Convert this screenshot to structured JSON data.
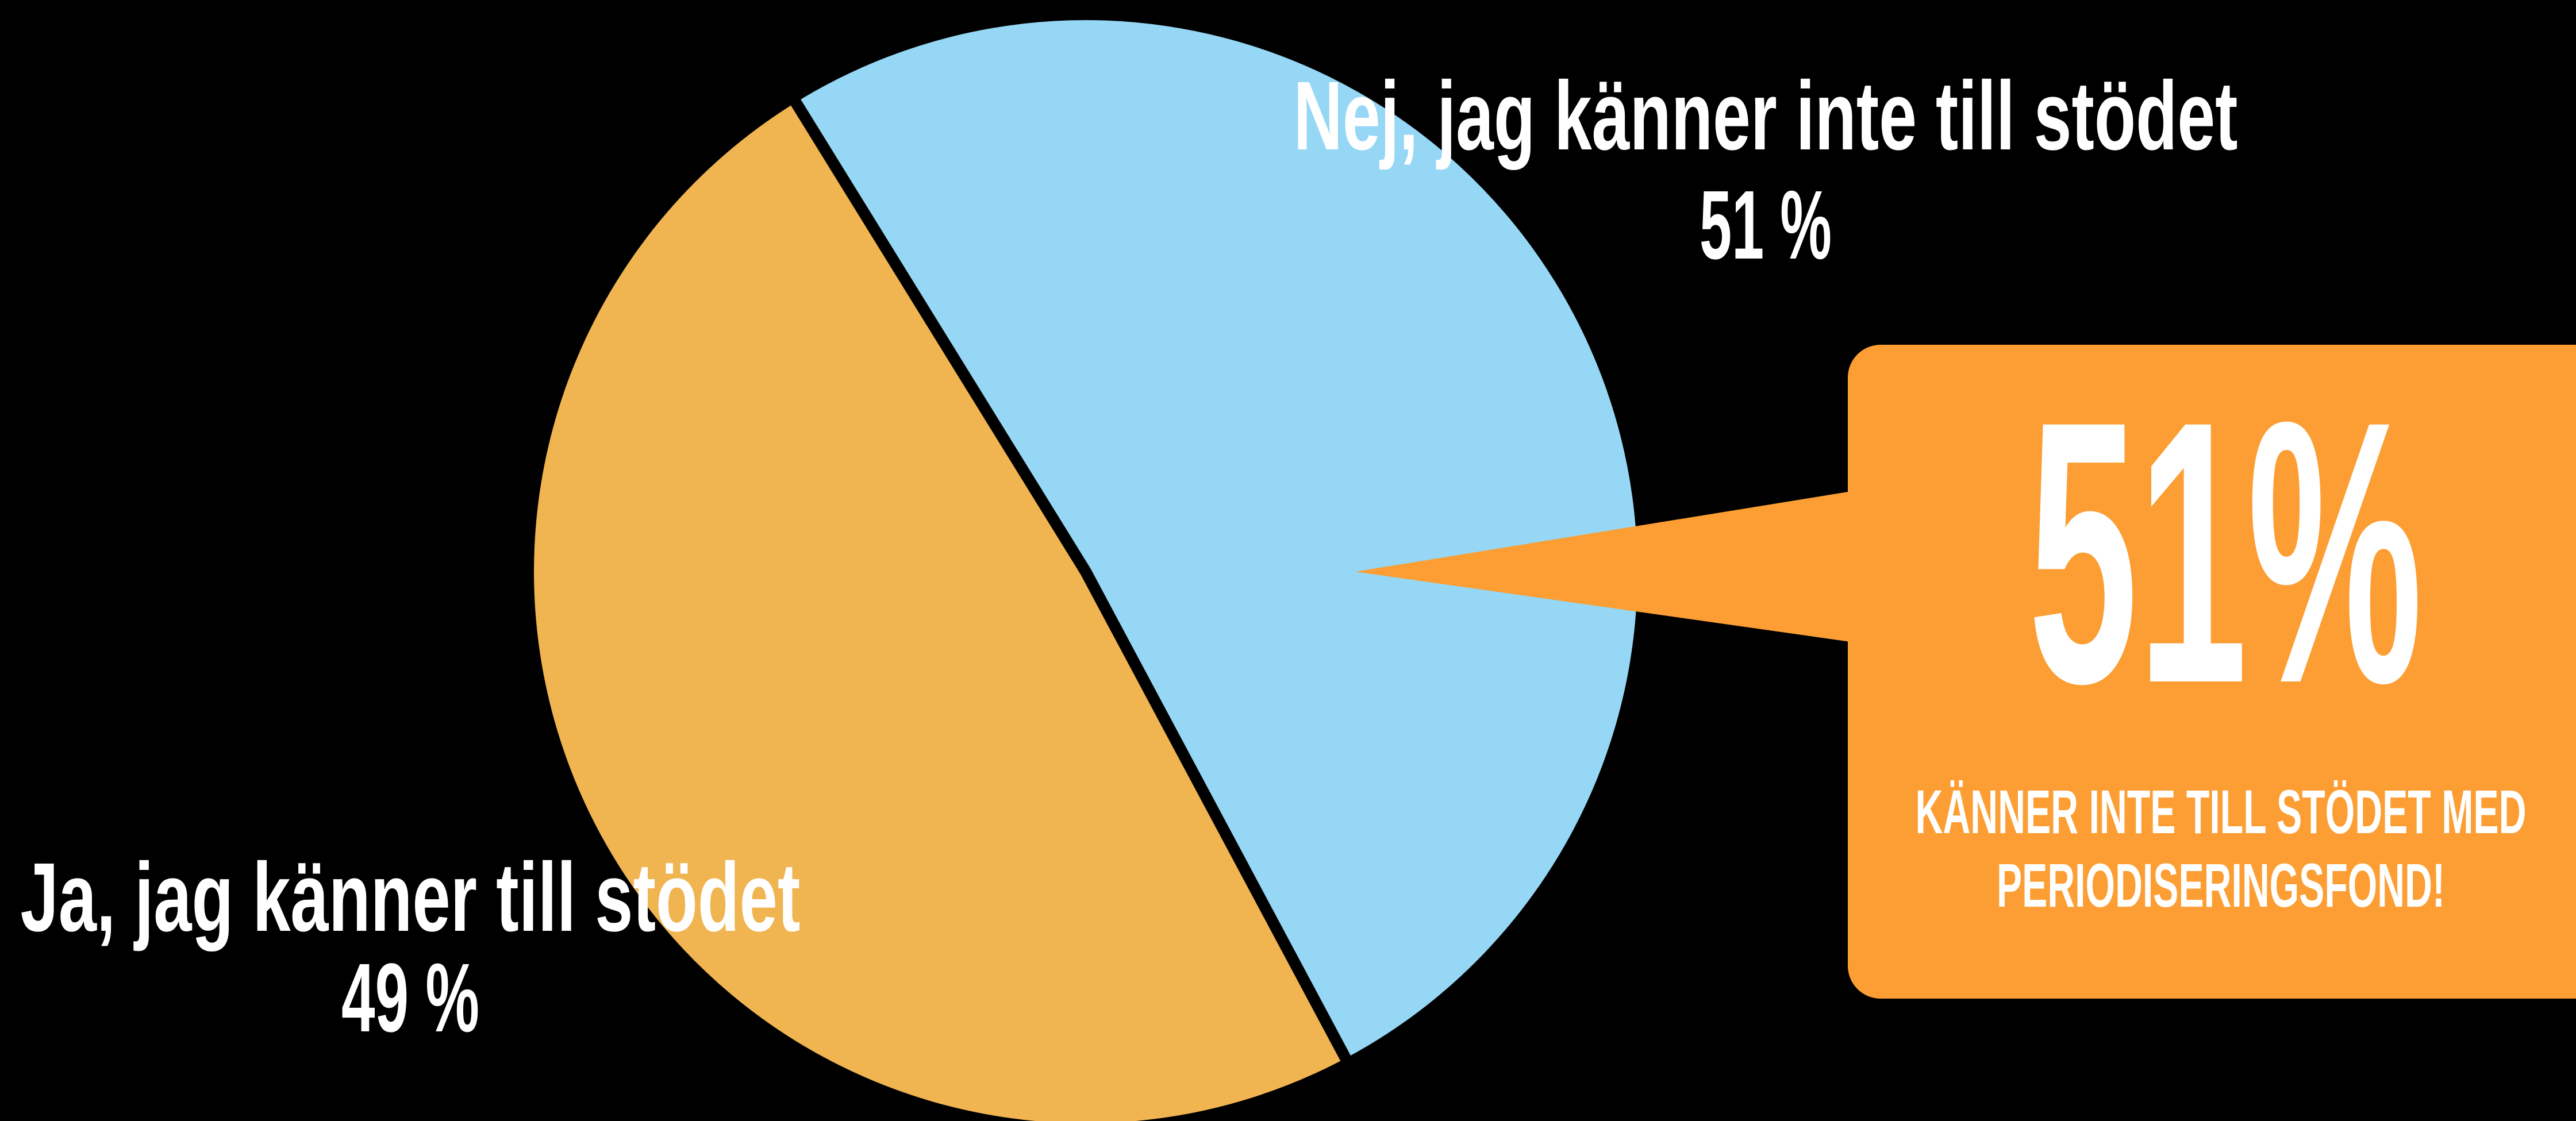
{
  "chart_data": {
    "type": "pie",
    "categories": [
      "Nej, jag känner inte till stödet",
      "Ja, jag känner till stödet"
    ],
    "values": [
      51,
      49
    ],
    "value_labels": [
      "51 %",
      "49 %"
    ],
    "colors": [
      "#95d7f5",
      "#f0b450"
    ],
    "callout": {
      "headline": "51%",
      "text": [
        "KÄNNER INTE TILL STÖDET MED",
        "PERIODISERINGSFOND!"
      ],
      "color": "#fc9e33"
    }
  }
}
